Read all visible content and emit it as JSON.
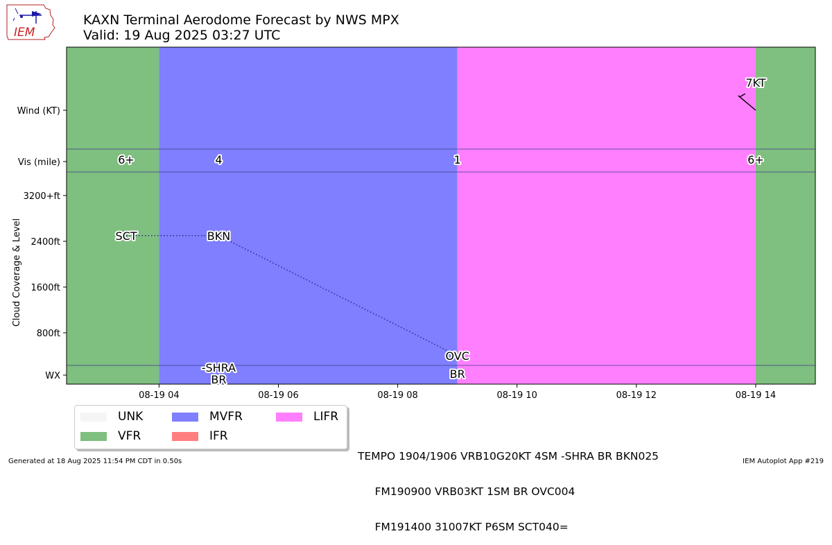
{
  "title_line1": "KAXN Terminal Aerodome Forecast by NWS MPX",
  "title_line2": "Valid: 19 Aug 2025 03:27 UTC",
  "logo_text": "IEM",
  "footer_left": "Generated at 18 Aug 2025 11:54 PM CDT in 0.50s",
  "footer_right": "IEM Autoplot App #219",
  "taf_lines": [
    "TEMPO 1904/1906 VRB10G20KT 4SM -SHRA BR BKN025",
    "     FM190900 VRB03KT 1SM BR OVC004",
    "     FM191400 31007KT P6SM SCT040="
  ],
  "legend": [
    {
      "label": "UNK",
      "color": "#f5f5f5"
    },
    {
      "label": "VFR",
      "color": "#7fbf7f"
    },
    {
      "label": "MVFR",
      "color": "#7f7fff"
    },
    {
      "label": "IFR",
      "color": "#ff7f7f"
    },
    {
      "label": "LIFR",
      "color": "#ff7fff"
    }
  ],
  "chart_data": {
    "type": "timeline",
    "x_range_hours": [
      2.45,
      15.0
    ],
    "x_ticks": [
      {
        "hour": 4,
        "label": "08-19 04"
      },
      {
        "hour": 6,
        "label": "08-19 06"
      },
      {
        "hour": 8,
        "label": "08-19 08"
      },
      {
        "hour": 10,
        "label": "08-19 10"
      },
      {
        "hour": 12,
        "label": "08-19 12"
      },
      {
        "hour": 14,
        "label": "08-19 14"
      }
    ],
    "y_ticks": [
      {
        "label": "Wind (KT)",
        "row": "wind"
      },
      {
        "label": "Vis (mile)",
        "row": "vis"
      },
      {
        "label": "3200+ft",
        "ft": 3200
      },
      {
        "label": "2400ft",
        "ft": 2400
      },
      {
        "label": "1600ft",
        "ft": 1600
      },
      {
        "label": "800ft",
        "ft": 800
      },
      {
        "label": "WX",
        "row": "wx"
      }
    ],
    "ylabel": "Cloud Coverage & Level",
    "category_spans": [
      {
        "start": 2.45,
        "end": 4.0,
        "category": "VFR",
        "color": "#7fbf7f"
      },
      {
        "start": 4.0,
        "end": 9.0,
        "category": "MVFR",
        "color": "#7f7fff"
      },
      {
        "start": 9.0,
        "end": 14.0,
        "category": "LIFR",
        "color": "#ff7fff"
      },
      {
        "start": 14.0,
        "end": 15.0,
        "category": "VFR",
        "color": "#7fbf7f"
      }
    ],
    "visibility": [
      {
        "hour": 3.45,
        "label": "6+"
      },
      {
        "hour": 5.0,
        "label": "4"
      },
      {
        "hour": 9.0,
        "label": "1"
      },
      {
        "hour": 14.0,
        "label": "6+"
      }
    ],
    "clouds": [
      {
        "hour": 3.45,
        "coverage": "SCT",
        "ft": 2500
      },
      {
        "hour": 5.0,
        "coverage": "BKN",
        "ft": 2500
      },
      {
        "hour": 9.0,
        "coverage": "OVC",
        "ft": 400
      }
    ],
    "weather": [
      {
        "hour": 5.0,
        "line1": "-SHRA",
        "line2": "BR"
      },
      {
        "hour": 9.0,
        "line1": "BR",
        "line2": ""
      }
    ],
    "wind": [
      {
        "hour": 14.0,
        "direction_deg": 310,
        "speed_kt": 7,
        "label": "7KT"
      }
    ]
  }
}
